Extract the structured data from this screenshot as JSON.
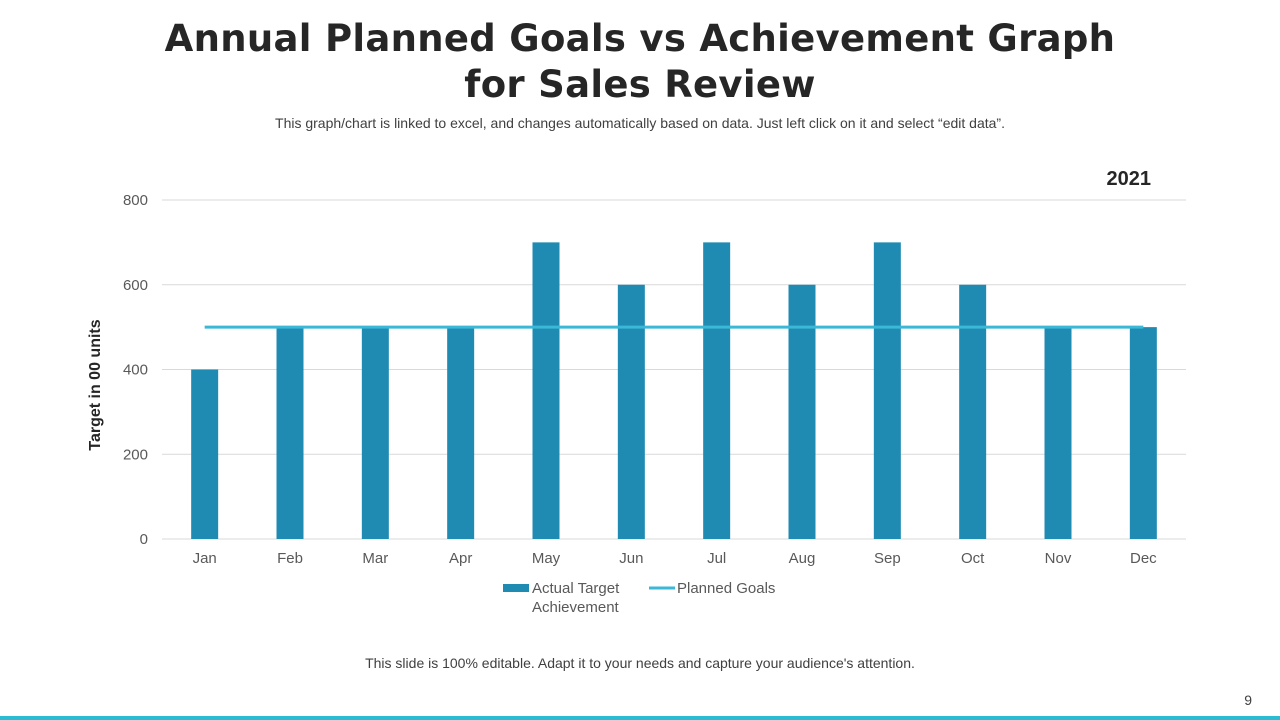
{
  "slide": {
    "title": "Annual Planned Goals vs Achievement Graph for Sales Review",
    "subtitle": "This graph/chart is linked to excel, and changes automatically based on data. Just left click on it and select “edit data”.",
    "footer_note": "This slide is 100% editable. Adapt it to your needs and capture your audience's attention.",
    "page_number": "9",
    "accent_color": "#2bbcd4"
  },
  "chart_data": {
    "type": "bar",
    "year_label": "2021",
    "categories": [
      "Jan",
      "Feb",
      "Mar",
      "Apr",
      "May",
      "Jun",
      "Jul",
      "Aug",
      "Sep",
      "Oct",
      "Nov",
      "Dec"
    ],
    "series": [
      {
        "name": "Actual Target Achievement",
        "kind": "bar",
        "color": "#1f8bb3",
        "values": [
          400,
          500,
          500,
          500,
          700,
          600,
          700,
          600,
          700,
          600,
          500,
          500
        ]
      },
      {
        "name": "Planned Goals",
        "kind": "line",
        "color": "#3bb8d6",
        "values": [
          500,
          500,
          500,
          500,
          500,
          500,
          500,
          500,
          500,
          500,
          500,
          500
        ]
      }
    ],
    "ylabel": "Target in 00 units",
    "xlabel": "",
    "ylim": [
      0,
      800
    ],
    "yticks": [
      0,
      200,
      400,
      600,
      800
    ],
    "grid": true,
    "legend_position": "bottom-center"
  }
}
